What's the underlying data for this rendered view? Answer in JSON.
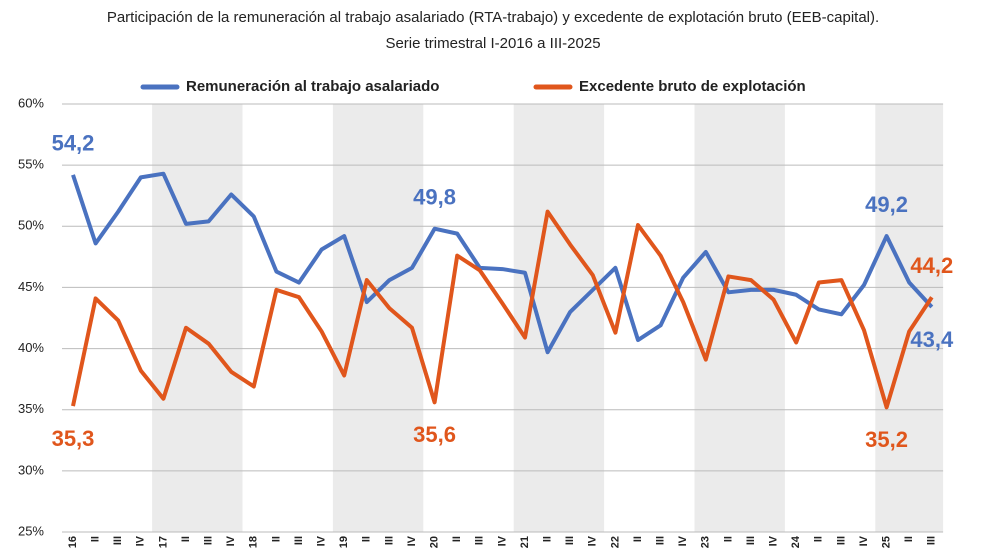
{
  "chart_data": {
    "type": "line",
    "title": "Participación de la remuneración al trabajo asalariado (RTA-trabajo) y excedente de explotación bruto (EEB-capital).",
    "subtitle": "Serie trimestral I-2016 a III-2025",
    "categories": [
      "16",
      "II",
      "III",
      "IV",
      "17",
      "II",
      "III",
      "IV",
      "18",
      "II",
      "III",
      "IV",
      "19",
      "II",
      "III",
      "IV",
      "20",
      "II",
      "III",
      "IV",
      "21",
      "II",
      "III",
      "IV",
      "22",
      "II",
      "III",
      "IV",
      "23",
      "II",
      "III",
      "IV",
      "24",
      "II",
      "III",
      "IV",
      "25",
      "II",
      "III"
    ],
    "series": [
      {
        "name": "Remuneración al trabajo asalariado",
        "color": "#4a72c0",
        "values": [
          54.2,
          48.6,
          51.2,
          54.0,
          54.3,
          50.2,
          50.4,
          52.6,
          50.8,
          46.3,
          45.4,
          48.1,
          49.2,
          43.8,
          45.6,
          46.6,
          49.8,
          49.4,
          46.6,
          46.5,
          46.2,
          39.7,
          43.0,
          44.8,
          46.6,
          40.7,
          41.9,
          45.8,
          47.9,
          44.6,
          44.8,
          44.8,
          44.4,
          43.2,
          42.8,
          45.2,
          49.2,
          45.4,
          43.4
        ],
        "value_labels": [
          "54,2",
          null,
          null,
          null,
          null,
          null,
          null,
          null,
          null,
          null,
          null,
          null,
          null,
          null,
          null,
          null,
          "49,8",
          null,
          null,
          null,
          null,
          null,
          null,
          null,
          null,
          null,
          null,
          null,
          null,
          null,
          null,
          null,
          null,
          null,
          null,
          null,
          "49,2",
          null,
          "43,4"
        ]
      },
      {
        "name": "Excedente bruto de explotación",
        "color": "#e0561c",
        "values": [
          35.3,
          44.1,
          42.3,
          38.2,
          35.9,
          41.7,
          40.4,
          38.1,
          36.9,
          44.8,
          44.2,
          41.4,
          37.8,
          45.6,
          43.3,
          41.7,
          35.6,
          47.6,
          46.4,
          43.7,
          40.9,
          51.2,
          48.5,
          46.0,
          41.3,
          50.1,
          47.6,
          43.8,
          39.1,
          45.9,
          45.6,
          44.0,
          40.5,
          45.4,
          45.6,
          41.5,
          35.2,
          41.4,
          44.2
        ],
        "value_labels": [
          "35,3",
          null,
          null,
          null,
          null,
          null,
          null,
          null,
          null,
          null,
          null,
          null,
          null,
          null,
          null,
          null,
          "35,6",
          null,
          null,
          null,
          null,
          null,
          null,
          null,
          null,
          null,
          null,
          null,
          null,
          null,
          null,
          null,
          null,
          null,
          null,
          null,
          "35,2",
          null,
          "44,2"
        ]
      }
    ],
    "ylim": [
      25,
      60
    ],
    "yticks": [
      {
        "value": 25,
        "label": "25%"
      },
      {
        "value": 30,
        "label": "30%"
      },
      {
        "value": 35,
        "label": "35%"
      },
      {
        "value": 40,
        "label": "40%"
      },
      {
        "value": 45,
        "label": "45%"
      },
      {
        "value": 50,
        "label": "50%"
      },
      {
        "value": 55,
        "label": "55%"
      },
      {
        "value": 60,
        "label": "60%"
      }
    ],
    "grid": true
  }
}
